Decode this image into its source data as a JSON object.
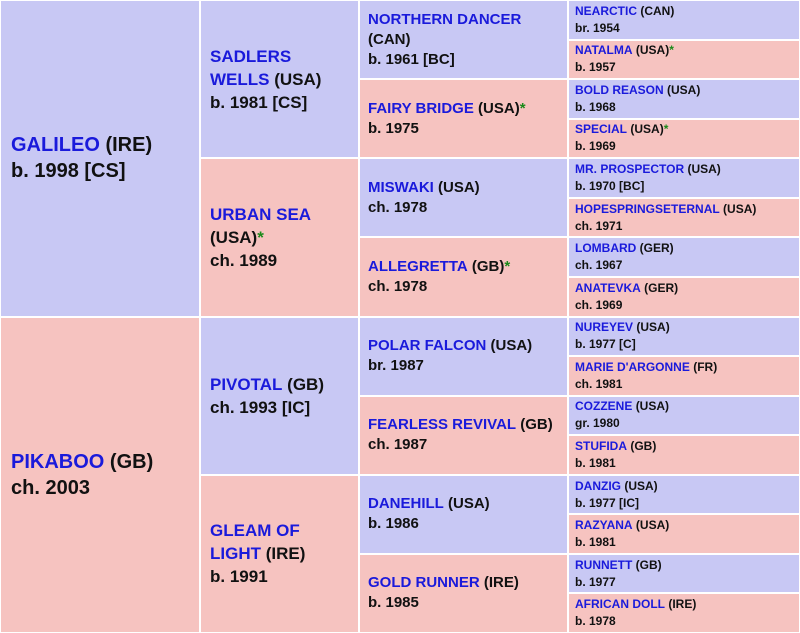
{
  "gen1": [
    {
      "name": "GALILEO",
      "origin": "(IRE)",
      "star": "",
      "info": "b. 1998 [CS]"
    },
    {
      "name": "PIKABOO",
      "origin": "(GB)",
      "star": "",
      "info": "ch. 2003"
    }
  ],
  "gen2": [
    {
      "name": "SADLERS WELLS",
      "origin": "(USA)",
      "star": "",
      "info": "b. 1981 [CS]"
    },
    {
      "name": "URBAN SEA",
      "origin": "(USA)",
      "star": "*",
      "info": "ch. 1989"
    },
    {
      "name": "PIVOTAL",
      "origin": "(GB)",
      "star": "",
      "info": "ch. 1993 [IC]"
    },
    {
      "name": "GLEAM OF LIGHT",
      "origin": "(IRE)",
      "star": "",
      "info": "b. 1991"
    }
  ],
  "gen3": [
    {
      "name": "NORTHERN DANCER",
      "origin": "(CAN)",
      "star": "",
      "info": "b. 1961 [BC]"
    },
    {
      "name": "FAIRY BRIDGE",
      "origin": "(USA)",
      "star": "*",
      "info": "b. 1975"
    },
    {
      "name": "MISWAKI",
      "origin": "(USA)",
      "star": "",
      "info": "ch. 1978"
    },
    {
      "name": "ALLEGRETTA",
      "origin": "(GB)",
      "star": "*",
      "info": "ch. 1978"
    },
    {
      "name": "POLAR FALCON",
      "origin": "(USA)",
      "star": "",
      "info": "br. 1987"
    },
    {
      "name": "FEARLESS REVIVAL",
      "origin": "(GB)",
      "star": "",
      "info": "ch. 1987"
    },
    {
      "name": "DANEHILL",
      "origin": "(USA)",
      "star": "",
      "info": "b. 1986"
    },
    {
      "name": "GOLD RUNNER",
      "origin": "(IRE)",
      "star": "",
      "info": "b. 1985"
    }
  ],
  "gen4": [
    {
      "name": "NEARCTIC",
      "origin": "(CAN)",
      "star": "",
      "info": "br. 1954"
    },
    {
      "name": "NATALMA",
      "origin": "(USA)",
      "star": "*",
      "info": "b. 1957"
    },
    {
      "name": "BOLD REASON",
      "origin": "(USA)",
      "star": "",
      "info": "b. 1968"
    },
    {
      "name": "SPECIAL",
      "origin": "(USA)",
      "star": "*",
      "info": "b. 1969"
    },
    {
      "name": "MR. PROSPECTOR",
      "origin": "(USA)",
      "star": "",
      "info": "b. 1970 [BC]"
    },
    {
      "name": "HOPESPRINGSETERNAL",
      "origin": "(USA)",
      "star": "",
      "info": "ch. 1971"
    },
    {
      "name": "LOMBARD",
      "origin": "(GER)",
      "star": "",
      "info": "ch. 1967"
    },
    {
      "name": "ANATEVKA",
      "origin": "(GER)",
      "star": "",
      "info": "ch. 1969"
    },
    {
      "name": "NUREYEV",
      "origin": "(USA)",
      "star": "",
      "info": "b. 1977 [C]"
    },
    {
      "name": "MARIE D'ARGONNE",
      "origin": "(FR)",
      "star": "",
      "info": "ch. 1981"
    },
    {
      "name": "COZZENE",
      "origin": "(USA)",
      "star": "",
      "info": "gr. 1980"
    },
    {
      "name": "STUFIDA",
      "origin": "(GB)",
      "star": "",
      "info": "b. 1981"
    },
    {
      "name": "DANZIG",
      "origin": "(USA)",
      "star": "",
      "info": "b. 1977 [IC]"
    },
    {
      "name": "RAZYANA",
      "origin": "(USA)",
      "star": "",
      "info": "b. 1981"
    },
    {
      "name": "RUNNETT",
      "origin": "(GB)",
      "star": "",
      "info": "b. 1977"
    },
    {
      "name": "AFRICAN DOLL",
      "origin": "(IRE)",
      "star": "",
      "info": "b. 1978"
    }
  ],
  "colors": {
    "male_bg": "#c8c8f4",
    "female_bg": "#f6c3c0",
    "name_text": "#1a1adb",
    "star_mark": "#1a8a1a"
  }
}
